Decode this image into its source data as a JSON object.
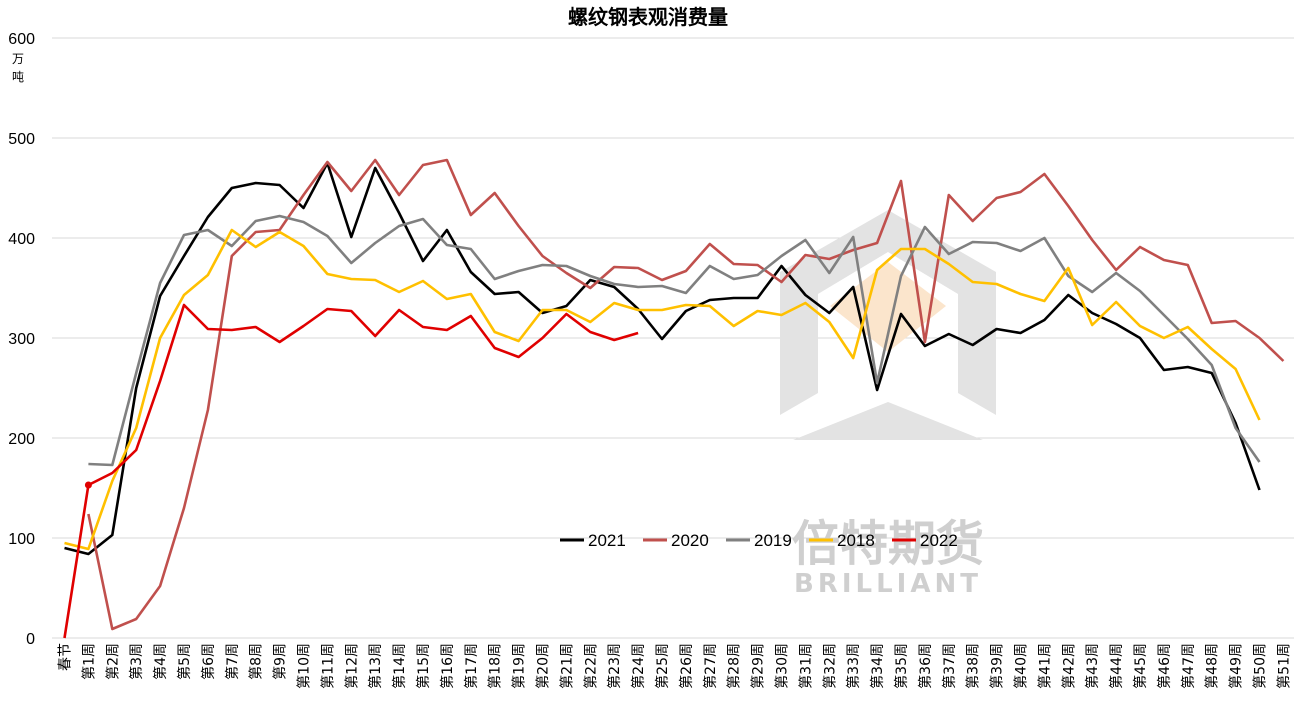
{
  "chart_data": {
    "type": "line",
    "title": "螺纹钢表观消费量",
    "ylabel_chars": [
      "万",
      "吨"
    ],
    "ylim": [
      0,
      600
    ],
    "yticks": [
      0,
      100,
      200,
      300,
      400,
      500,
      600
    ],
    "grid": true,
    "legend_position": "center",
    "categories": [
      "春节",
      "第1周",
      "第2周",
      "第3周",
      "第4周",
      "第5周",
      "第6周",
      "第7周",
      "第8周",
      "第9周",
      "第10周",
      "第11周",
      "第12周",
      "第13周",
      "第14周",
      "第15周",
      "第16周",
      "第17周",
      "第18周",
      "第19周",
      "第20周",
      "第21周",
      "第22周",
      "第23周",
      "第24周",
      "第25周",
      "第26周",
      "第27周",
      "第28周",
      "第29周",
      "第30周",
      "第31周",
      "第32周",
      "第33周",
      "第34周",
      "第35周",
      "第36周",
      "第37周",
      "第38周",
      "第39周",
      "第40周",
      "第41周",
      "第42周",
      "第43周",
      "第44周",
      "第45周",
      "第46周",
      "第47周",
      "第48周",
      "第49周",
      "第50周",
      "第51周"
    ],
    "series": [
      {
        "name": "2021",
        "color": "#000000",
        "values": [
          90,
          84,
          103,
          250,
          342,
          382,
          421,
          450,
          455,
          453,
          430,
          475,
          401,
          470,
          425,
          377,
          408,
          366,
          344,
          346,
          325,
          332,
          358,
          351,
          329,
          299,
          327,
          338,
          340,
          340,
          372,
          343,
          325,
          351,
          248,
          324,
          292,
          304,
          293,
          309,
          305,
          318,
          343,
          325,
          314,
          300,
          268,
          271,
          265,
          215,
          148,
          null
        ]
      },
      {
        "name": "2020",
        "color": "#C0504D",
        "values": [
          null,
          124,
          9,
          19,
          52,
          130,
          228,
          382,
          406,
          408,
          443,
          476,
          447,
          478,
          443,
          473,
          478,
          423,
          445,
          412,
          382,
          365,
          350,
          371,
          370,
          358,
          367,
          394,
          374,
          373,
          356,
          383,
          379,
          388,
          395,
          457,
          296,
          443,
          417,
          440,
          446,
          464,
          432,
          398,
          368,
          391,
          378,
          373,
          315,
          317,
          300,
          277
        ]
      },
      {
        "name": "2019",
        "color": "#808080",
        "values": [
          null,
          174,
          173,
          265,
          355,
          403,
          408,
          392,
          417,
          422,
          416,
          402,
          375,
          395,
          412,
          419,
          393,
          389,
          359,
          367,
          373,
          372,
          362,
          354,
          351,
          352,
          345,
          372,
          359,
          363,
          382,
          398,
          365,
          401,
          255,
          362,
          411,
          384,
          396,
          395,
          387,
          400,
          362,
          346,
          365,
          347,
          323,
          299,
          273,
          210,
          176,
          null
        ]
      },
      {
        "name": "2018",
        "color": "#FFC000",
        "values": [
          95,
          89,
          157,
          210,
          300,
          343,
          363,
          408,
          391,
          406,
          392,
          364,
          359,
          358,
          346,
          357,
          339,
          344,
          306,
          297,
          328,
          328,
          316,
          335,
          328,
          328,
          333,
          332,
          312,
          327,
          323,
          335,
          316,
          280,
          368,
          389,
          389,
          374,
          356,
          354,
          344,
          337,
          370,
          313,
          336,
          312,
          300,
          311,
          289,
          269,
          218,
          null
        ]
      },
      {
        "name": "2022",
        "color": "#E00000",
        "values": [
          0,
          153,
          165,
          188,
          257,
          333,
          309,
          308,
          311,
          296,
          312,
          329,
          327,
          302,
          328,
          311,
          308,
          322,
          290,
          281,
          300,
          324,
          306,
          298,
          305,
          null,
          null,
          null,
          null,
          null,
          null,
          null,
          null,
          null,
          null,
          null,
          null,
          null,
          null,
          null,
          null,
          null,
          null,
          null,
          null,
          null,
          null,
          null,
          null,
          null,
          null,
          null
        ],
        "marker_index": 1
      }
    ]
  },
  "watermark": {
    "cn": "倍特期货",
    "en": "BRILLIANT"
  }
}
